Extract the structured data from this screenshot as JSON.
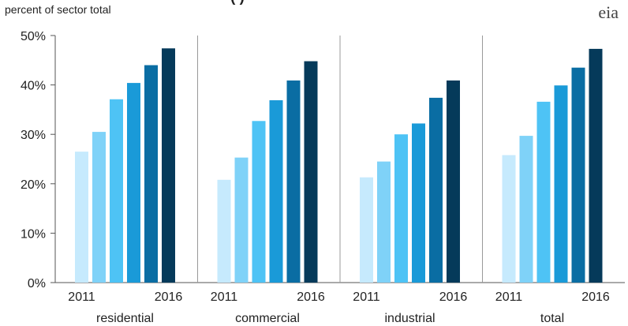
{
  "chart_data": {
    "type": "bar",
    "title": "(       )",
    "ylabel": "percent of sector total",
    "ylim": [
      0,
      50
    ],
    "yticks": [
      "0%",
      "10%",
      "20%",
      "30%",
      "40%",
      "50%"
    ],
    "ytick_values": [
      0,
      10,
      20,
      30,
      40,
      50
    ],
    "grid": false,
    "categories": [
      "residential",
      "commercial",
      "industrial",
      "total"
    ],
    "x_labels": [
      "2011",
      "",
      "",
      "",
      "",
      "2016"
    ],
    "series": [
      {
        "values": [
          26.5,
          20.8,
          21.3,
          25.8
        ]
      },
      {
        "values": [
          30.5,
          25.3,
          24.5,
          29.7
        ]
      },
      {
        "values": [
          37.1,
          32.7,
          30.0,
          36.6
        ]
      },
      {
        "values": [
          40.4,
          36.9,
          32.2,
          39.9
        ]
      },
      {
        "values": [
          44.0,
          40.9,
          37.4,
          43.5
        ]
      },
      {
        "values": [
          47.4,
          44.8,
          40.9,
          47.3
        ]
      }
    ],
    "colors": [
      "#c6eafd",
      "#7fd2f8",
      "#4ec3f5",
      "#1a9ad8",
      "#0a6da3",
      "#053a5a"
    ]
  },
  "logo": "eia"
}
